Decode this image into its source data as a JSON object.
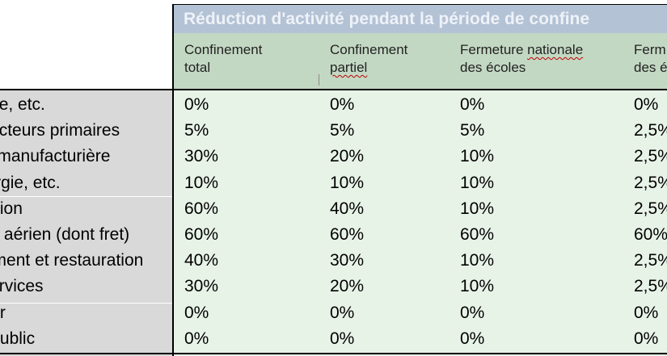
{
  "table": {
    "title": "Réduction d'activité pendant la période de confine",
    "columns": [
      {
        "line1": "Confinement",
        "line2": "total"
      },
      {
        "line1": "Confinement",
        "line2": "partiel"
      },
      {
        "line1": "Fermeture  nationale",
        "line2": "des écoles"
      },
      {
        "line1": "Ferm",
        "line2": "des é"
      }
    ],
    "rows": [
      {
        "label": "Agriculture, etc.",
        "values": [
          "0%",
          "0%",
          "0%",
          "0%"
        ]
      },
      {
        "label": "Autres secteurs primaires",
        "values": [
          "5%",
          "5%",
          "5%",
          "2,5%"
        ]
      },
      {
        "label": "Industrie manufacturière",
        "values": [
          "30%",
          "20%",
          "10%",
          "2,5%"
        ]
      },
      {
        "label": "Eau, énergie, etc.",
        "values": [
          "10%",
          "10%",
          "10%",
          "2,5%"
        ]
      },
      {
        "label": "Construction",
        "values": [
          "60%",
          "40%",
          "10%",
          "2,5%"
        ]
      },
      {
        "label": "Transport aérien (dont fret)",
        "values": [
          "60%",
          "60%",
          "60%",
          "60%"
        ]
      },
      {
        "label": "Hébergement et restauration",
        "values": [
          "40%",
          "30%",
          "10%",
          "2,5%"
        ]
      },
      {
        "label": "Autres services",
        "values": [
          "30%",
          "20%",
          "10%",
          "2,5%"
        ]
      },
      {
        "label": "Immobilier",
        "values": [
          "0%",
          "0%",
          "0%",
          "0%"
        ]
      },
      {
        "label": "Secteur public",
        "values": [
          "0%",
          "0%",
          "0%",
          "0%"
        ]
      }
    ]
  }
}
